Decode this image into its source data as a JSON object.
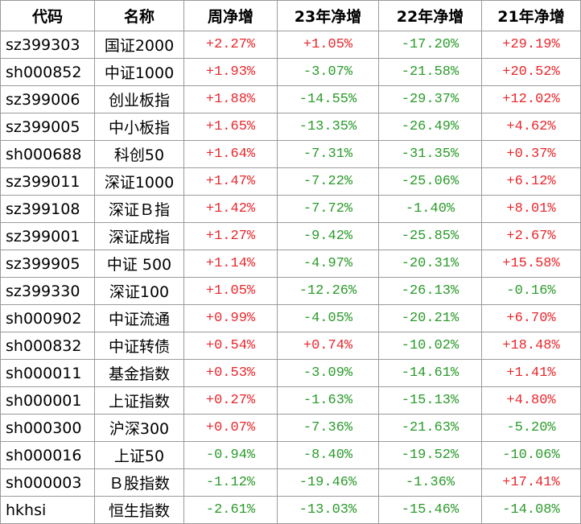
{
  "table": {
    "header": [
      "代码",
      "名称",
      "周净增",
      "23年净增",
      "22年净增",
      "21年净增"
    ],
    "positive_color": "#e8262b",
    "negative_color": "#2a9a2a",
    "rows": [
      [
        "sz399303",
        "国证2000",
        "+2.27%",
        "+1.05%",
        "-17.20%",
        "+29.19%"
      ],
      [
        "sh000852",
        "中证1000",
        "+1.93%",
        "-3.07%",
        "-21.58%",
        "+20.52%"
      ],
      [
        "sz399006",
        "创业板指",
        "+1.88%",
        "-14.55%",
        "-29.37%",
        "+12.02%"
      ],
      [
        "sz399005",
        "中小板指",
        "+1.65%",
        "-13.35%",
        "-26.49%",
        "+4.62%"
      ],
      [
        "sh000688",
        "科创50",
        "+1.64%",
        "-7.31%",
        "-31.35%",
        "+0.37%"
      ],
      [
        "sz399011",
        "深证1000",
        "+1.47%",
        "-7.22%",
        "-25.06%",
        "+6.12%"
      ],
      [
        "sz399108",
        "深证Ｂ指",
        "+1.42%",
        "-7.72%",
        "-1.40%",
        "+8.01%"
      ],
      [
        "sz399001",
        "深证成指",
        "+1.27%",
        "-9.42%",
        "-25.85%",
        "+2.67%"
      ],
      [
        "sz399905",
        "中证 500",
        "+1.14%",
        "-4.97%",
        "-20.31%",
        "+15.58%"
      ],
      [
        "sz399330",
        "深证100",
        "+1.05%",
        "-12.26%",
        "-26.13%",
        "-0.16%"
      ],
      [
        "sh000902",
        "中证流通",
        "+0.99%",
        "-4.05%",
        "-20.21%",
        "+6.70%"
      ],
      [
        "sh000832",
        "中证转债",
        "+0.54%",
        "+0.74%",
        "-10.02%",
        "+18.48%"
      ],
      [
        "sh000011",
        "基金指数",
        "+0.53%",
        "-3.09%",
        "-14.61%",
        "+1.41%"
      ],
      [
        "sh000001",
        "上证指数",
        "+0.27%",
        "-1.63%",
        "-15.13%",
        "+4.80%"
      ],
      [
        "sh000300",
        "沪深300",
        "+0.07%",
        "-7.36%",
        "-21.63%",
        "-5.20%"
      ],
      [
        "sh000016",
        "上证50",
        "-0.94%",
        "-8.40%",
        "-19.52%",
        "-10.06%"
      ],
      [
        "sh000003",
        "Ｂ股指数",
        "-1.12%",
        "-19.46%",
        "-1.36%",
        "+17.41%"
      ],
      [
        "hkhsi",
        "恒生指数",
        "-2.61%",
        "-13.03%",
        "-15.46%",
        "-14.08%"
      ]
    ]
  }
}
